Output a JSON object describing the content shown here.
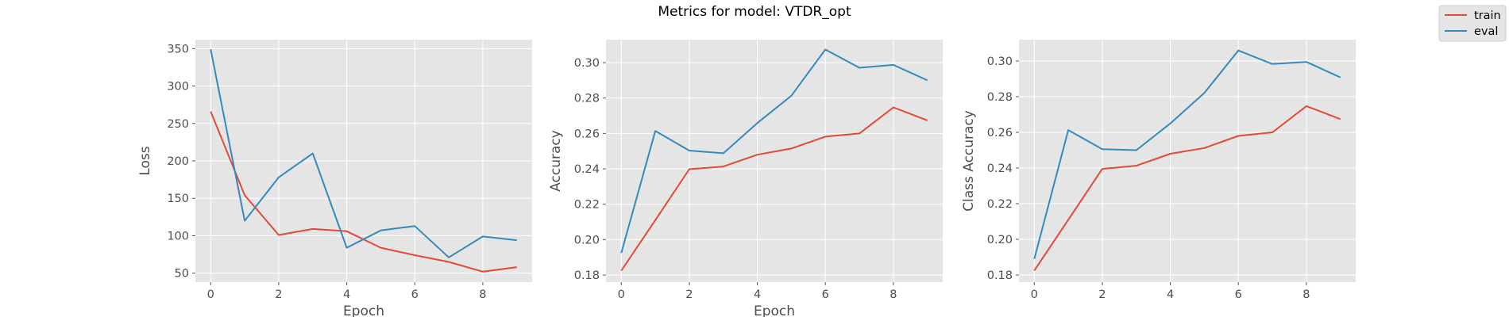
{
  "figure": {
    "title": "Metrics for model: VTDR_opt"
  },
  "legend": {
    "placement": "top-right",
    "entries": [
      {
        "label": "train",
        "color": "#e24a33"
      },
      {
        "label": "eval",
        "color": "#348abd"
      }
    ]
  },
  "style": {
    "plot_background": "#e5e5e5",
    "grid_color": "#ffffff",
    "grid": true
  },
  "chart_data": [
    {
      "type": "line",
      "xlabel": "Epoch",
      "ylabel": "Loss",
      "x": [
        0,
        1,
        2,
        3,
        4,
        5,
        6,
        7,
        8,
        9
      ],
      "xlim": [
        -0.45,
        9.45
      ],
      "ylim": [
        38,
        362
      ],
      "xticks": [
        0,
        2,
        4,
        6,
        8
      ],
      "yticks": [
        50,
        100,
        150,
        200,
        250,
        300,
        350
      ],
      "ytick_labels": [
        "50",
        "100",
        "150",
        "200",
        "250",
        "300",
        "350"
      ],
      "series": [
        {
          "name": "train",
          "values": [
            266,
            154,
            101,
            109,
            106,
            84,
            74,
            65,
            52,
            58
          ]
        },
        {
          "name": "eval",
          "values": [
            349,
            120,
            178,
            210,
            84,
            107,
            113,
            71,
            99,
            94
          ]
        }
      ]
    },
    {
      "type": "line",
      "xlabel": "Epoch",
      "ylabel": "Accuracy",
      "x": [
        0,
        1,
        2,
        3,
        4,
        5,
        6,
        7,
        8,
        9
      ],
      "xlim": [
        -0.45,
        9.45
      ],
      "ylim": [
        0.176,
        0.313
      ],
      "xticks": [
        0,
        2,
        4,
        6,
        8
      ],
      "yticks": [
        0.18,
        0.2,
        0.22,
        0.24,
        0.26,
        0.28,
        0.3
      ],
      "ytick_labels": [
        "0.18",
        "0.20",
        "0.22",
        "0.24",
        "0.26",
        "0.28",
        "0.30"
      ],
      "series": [
        {
          "name": "train",
          "values": [
            0.1825,
            0.211,
            0.2398,
            0.2413,
            0.248,
            0.2515,
            0.2582,
            0.26,
            0.2747,
            0.2674
          ]
        },
        {
          "name": "eval",
          "values": [
            0.1925,
            0.2614,
            0.2503,
            0.2488,
            0.2659,
            0.2813,
            0.3074,
            0.2971,
            0.2987,
            0.29
          ]
        }
      ]
    },
    {
      "type": "line",
      "xlabel": "",
      "ylabel": "Class Accuracy",
      "x": [
        0,
        1,
        2,
        3,
        4,
        5,
        6,
        7,
        8,
        9
      ],
      "xlim": [
        -0.45,
        9.45
      ],
      "ylim": [
        0.176,
        0.312
      ],
      "xticks": [
        0,
        2,
        4,
        6,
        8
      ],
      "yticks": [
        0.18,
        0.2,
        0.22,
        0.24,
        0.26,
        0.28,
        0.3
      ],
      "ytick_labels": [
        "0.18",
        "0.20",
        "0.22",
        "0.24",
        "0.26",
        "0.28",
        "0.30"
      ],
      "series": [
        {
          "name": "train",
          "values": [
            0.1825,
            0.211,
            0.2395,
            0.2413,
            0.248,
            0.2512,
            0.258,
            0.26,
            0.2747,
            0.2674
          ]
        },
        {
          "name": "eval",
          "values": [
            0.189,
            0.2613,
            0.2506,
            0.25,
            0.265,
            0.2821,
            0.3059,
            0.2983,
            0.2995,
            0.2908
          ]
        }
      ]
    }
  ]
}
